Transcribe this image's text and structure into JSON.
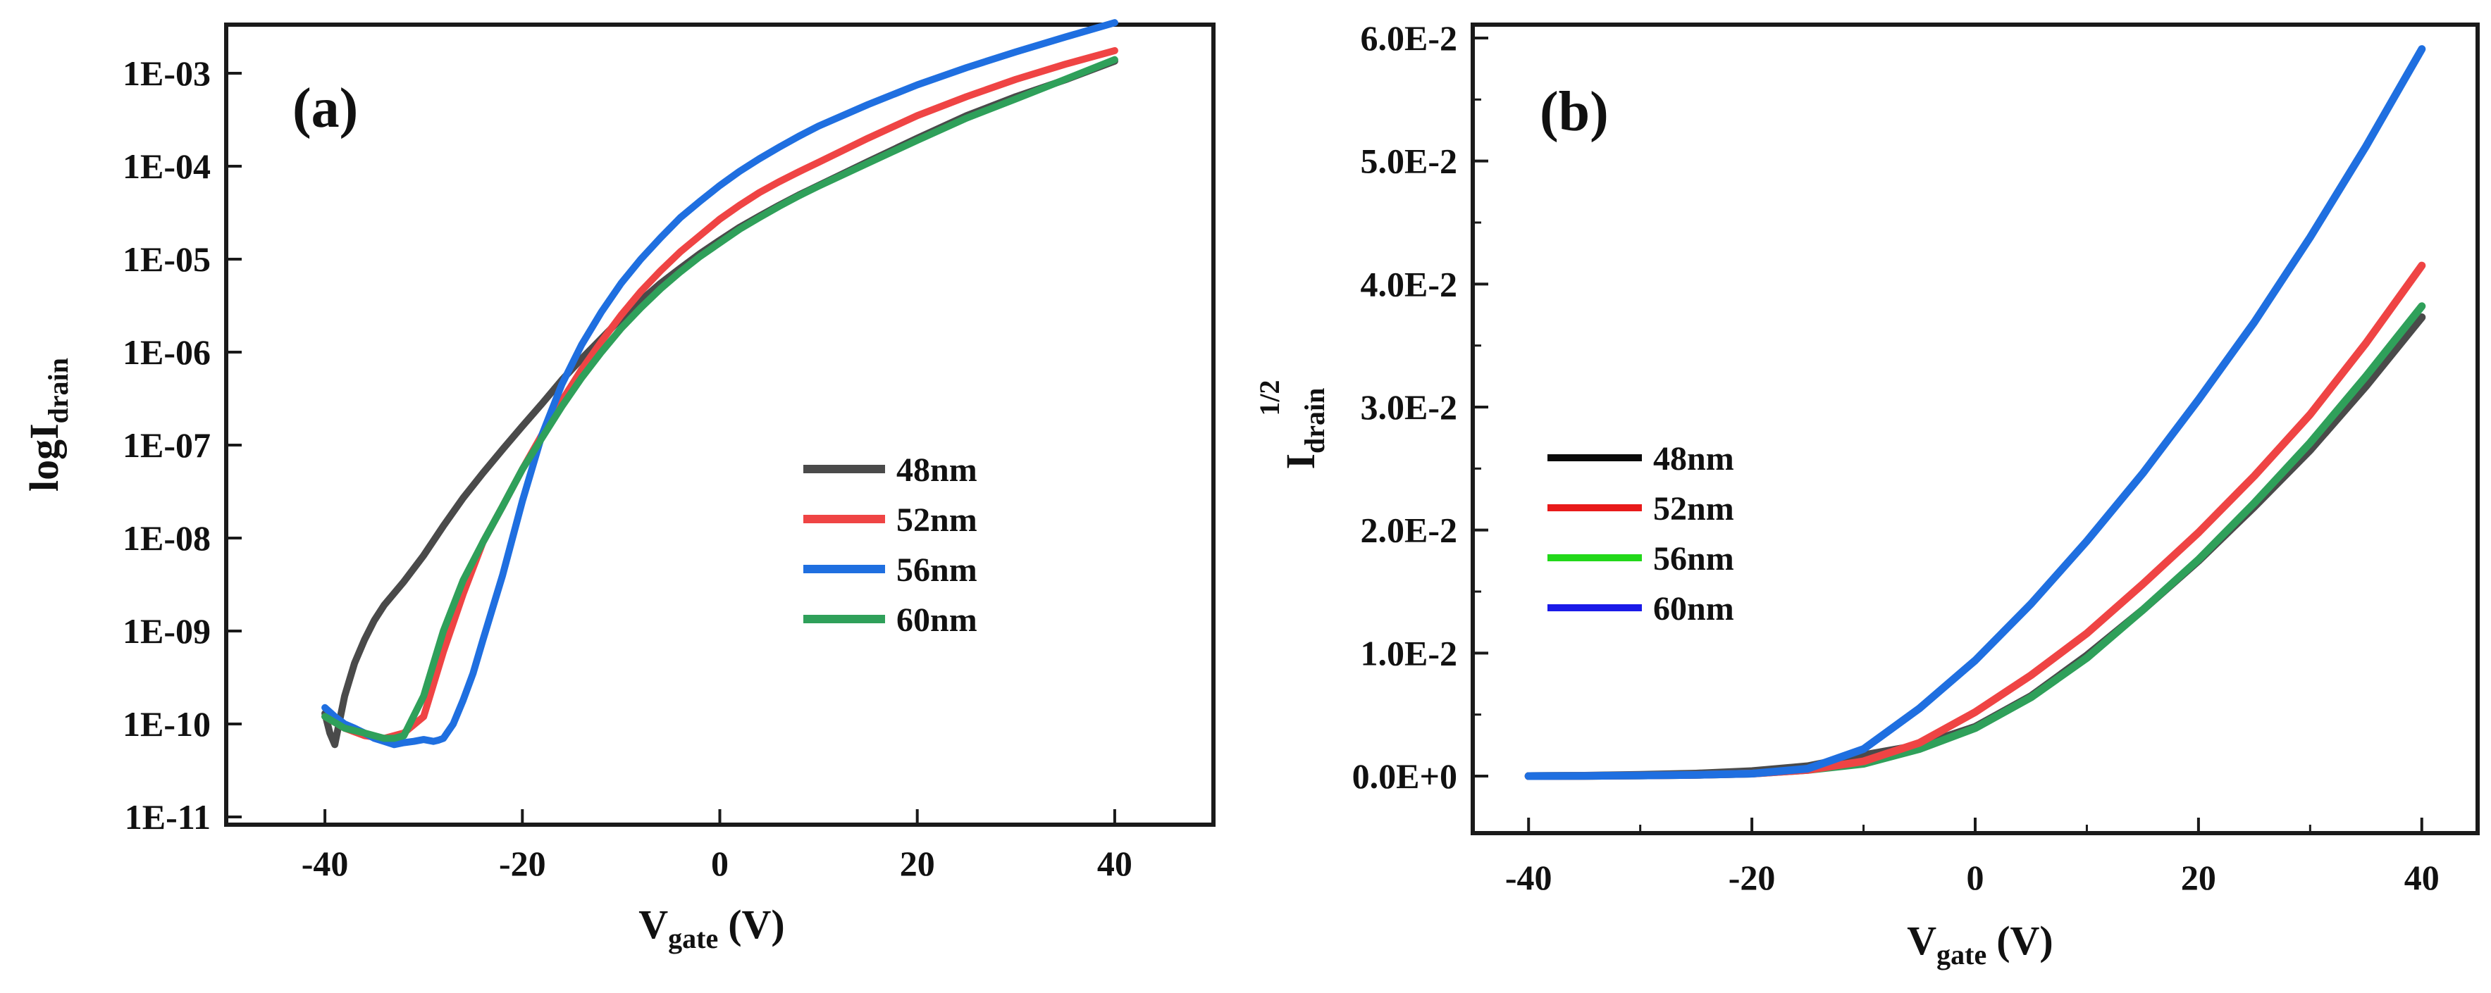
{
  "chart_data": [
    {
      "type": "line",
      "panel_label": "(a)",
      "ylabel": {
        "main": "logI",
        "sub": "drain"
      },
      "xlabel": {
        "main": "V",
        "sub": "gate",
        "unit": "(V)"
      },
      "x_ticks": [
        -40,
        -20,
        0,
        20,
        40
      ],
      "x_tick_labels": [
        "-40",
        "-20",
        "0",
        "20",
        "40"
      ],
      "xlim": [
        -50,
        50
      ],
      "y_scale": "log",
      "ylim": [
        1e-11,
        0.005
      ],
      "y_tick_labels": [
        "1E-11",
        "1E-10",
        "1E-09",
        "1E-08",
        "1E-07",
        "1E-06",
        "1E-05",
        "1E-04",
        "1E-03"
      ],
      "legend_position": "center-right",
      "series": [
        {
          "name": "48nm",
          "color": "#4a4a4a",
          "x": [
            -40,
            -39.5,
            -39,
            -38.5,
            -38,
            -37,
            -36,
            -35,
            -34,
            -32,
            -30,
            -28,
            -26,
            -24,
            -22,
            -20,
            -18,
            -16,
            -14,
            -12,
            -10,
            -8,
            -6,
            -4,
            -2,
            0,
            2,
            4,
            6,
            8,
            10,
            15,
            20,
            25,
            30,
            35,
            40
          ],
          "y": [
            1.3e-10,
            8e-11,
            6e-11,
            1.1e-10,
            2e-10,
            4.5e-10,
            8e-10,
            1.3e-09,
            1.9e-09,
            3.4e-09,
            6.5e-09,
            1.35e-08,
            2.7e-08,
            5e-08,
            9e-08,
            1.6e-07,
            2.8e-07,
            5e-07,
            8.5e-07,
            1.4e-06,
            2.3e-06,
            3.6e-06,
            5.5e-06,
            8e-06,
            1.15e-05,
            1.6e-05,
            2.2e-05,
            2.9e-05,
            3.8e-05,
            4.9e-05,
            6.2e-05,
            0.000112,
            0.0002,
            0.00035,
            0.00056,
            0.00085,
            0.00135
          ]
        },
        {
          "name": "52nm",
          "color": "#ef4444",
          "x": [
            -40,
            -38,
            -36,
            -34,
            -32,
            -30,
            -28,
            -26,
            -24,
            -22,
            -20,
            -18,
            -16,
            -14,
            -12,
            -10,
            -8,
            -6,
            -4,
            -2,
            0,
            2,
            4,
            6,
            8,
            10,
            15,
            20,
            25,
            30,
            35,
            40
          ],
          "y": [
            1.2e-10,
            9e-11,
            7.5e-11,
            7e-11,
            8e-11,
            1.2e-10,
            6e-10,
            2.5e-09,
            9e-09,
            2.2e-08,
            5.5e-08,
            1.3e-07,
            3e-07,
            6.5e-07,
            1.3e-06,
            2.5e-06,
            4.5e-06,
            7.5e-06,
            1.2e-05,
            1.8e-05,
            2.7e-05,
            3.8e-05,
            5.2e-05,
            6.8e-05,
            8.7e-05,
            0.00011,
            0.0002,
            0.00035,
            0.00056,
            0.00086,
            0.00125,
            0.00175
          ]
        },
        {
          "name": "56nm",
          "color": "#1f6fe0",
          "x": [
            -40,
            -39,
            -38,
            -37,
            -36,
            -35,
            -34,
            -33,
            -32,
            -31,
            -30,
            -29,
            -28.5,
            -28,
            -27,
            -26,
            -25,
            -24,
            -22,
            -20,
            -18,
            -16,
            -14,
            -12,
            -10,
            -8,
            -6,
            -4,
            -2,
            0,
            2,
            4,
            6,
            8,
            10,
            15,
            20,
            25,
            30,
            35,
            40
          ],
          "y": [
            1.5e-10,
            1.2e-10,
            1e-10,
            9e-11,
            8e-11,
            7e-11,
            6.5e-11,
            6e-11,
            6.3e-11,
            6.5e-11,
            6.8e-11,
            6.5e-11,
            6.7e-11,
            7e-11,
            1e-10,
            1.8e-10,
            3.5e-10,
            8e-10,
            4e-09,
            2.5e-08,
            1.3e-07,
            4.5e-07,
            1.2e-06,
            2.7e-06,
            5.5e-06,
            1e-05,
            1.7e-05,
            2.8e-05,
            4.2e-05,
            6.2e-05,
            8.8e-05,
            0.00012,
            0.00016,
            0.00021,
            0.00027,
            0.00046,
            0.00075,
            0.00115,
            0.0017,
            0.00245,
            0.0035
          ]
        },
        {
          "name": "60nm",
          "color": "#2fa05a",
          "x": [
            -40,
            -38,
            -36,
            -34,
            -33,
            -32,
            -30,
            -28,
            -26,
            -24,
            -22,
            -20,
            -18,
            -16,
            -14,
            -12,
            -10,
            -8,
            -6,
            -4,
            -2,
            0,
            2,
            4,
            6,
            8,
            10,
            15,
            20,
            25,
            30,
            35,
            40
          ],
          "y": [
            1.2e-10,
            9e-11,
            8e-11,
            7e-11,
            7e-11,
            7.5e-11,
            2e-10,
            1e-09,
            3.5e-09,
            9e-09,
            2.2e-08,
            5.5e-08,
            1.2e-07,
            2.6e-07,
            5.3e-07,
            1e-06,
            1.8e-06,
            3e-06,
            4.8e-06,
            7.3e-06,
            1.07e-05,
            1.5e-05,
            2.1e-05,
            2.8e-05,
            3.7e-05,
            4.8e-05,
            6.1e-05,
            0.000108,
            0.00019,
            0.00033,
            0.00053,
            0.00086,
            0.0014
          ]
        }
      ]
    },
    {
      "type": "line",
      "panel_label": "(b)",
      "ylabel": {
        "main": "I",
        "sub": "drain",
        "sup": "1/2"
      },
      "xlabel": {
        "main": "V",
        "sub": "gate",
        "unit": "(V)"
      },
      "x_ticks": [
        -40,
        -20,
        0,
        20,
        40
      ],
      "x_tick_labels": [
        "-40",
        "-20",
        "0",
        "20",
        "40"
      ],
      "xlim": [
        -45,
        45
      ],
      "y_ticks": [
        0,
        0.01,
        0.02,
        0.03,
        0.04,
        0.05,
        0.06
      ],
      "y_tick_labels": [
        "0.0E+0",
        "1.0E-2",
        "2.0E-2",
        "3.0E-2",
        "4.0E-2",
        "5.0E-2",
        "6.0E-2"
      ],
      "ylim": [
        -0.0045,
        0.06
      ],
      "legend_position": "center-left",
      "series": [
        {
          "name": "48nm",
          "color": "#0a0a0a",
          "x": [
            -40,
            -35,
            -30,
            -25,
            -20,
            -15,
            -10,
            -5,
            0,
            5,
            10,
            15,
            20,
            25,
            30,
            35,
            40
          ],
          "y": [
            0,
            3e-05,
            0.0001,
            0.0002,
            0.0004,
            0.0008,
            0.0017,
            0.0025,
            0.004,
            0.0065,
            0.0098,
            0.0135,
            0.0175,
            0.0219,
            0.0265,
            0.0317,
            0.0373
          ]
        },
        {
          "name": "52nm",
          "color": "#e81a1a",
          "x": [
            -40,
            -35,
            -30,
            -25,
            -20,
            -15,
            -10,
            -5,
            0,
            5,
            10,
            15,
            20,
            25,
            30,
            35,
            40
          ],
          "y": [
            0,
            2e-05,
            5e-05,
            0.0001,
            0.0002,
            0.0005,
            0.0012,
            0.0027,
            0.0052,
            0.0082,
            0.0116,
            0.0156,
            0.0198,
            0.0244,
            0.0294,
            0.0352,
            0.0415
          ]
        },
        {
          "name": "56nm",
          "color": "#22d81a",
          "x": [
            -40,
            -35,
            -30,
            -25,
            -20,
            -15,
            -10,
            -5,
            0,
            5,
            10,
            15,
            20,
            25,
            30,
            35,
            40
          ],
          "y": [
            0,
            2e-05,
            5e-05,
            0.0001,
            0.0002,
            0.0005,
            0.001,
            0.0022,
            0.0039,
            0.0064,
            0.0096,
            0.0135,
            0.0176,
            0.0222,
            0.0271,
            0.0325,
            0.0382
          ]
        },
        {
          "name": "60nm",
          "color": "#1a1ae8",
          "x": [
            -40,
            -35,
            -30,
            -25,
            -20,
            -15,
            -10,
            -5,
            0,
            5,
            10,
            15,
            20,
            25,
            30,
            35,
            40
          ],
          "y": [
            0,
            2e-05,
            5e-05,
            0.0001,
            0.0002,
            0.0006,
            0.0022,
            0.0055,
            0.0094,
            0.014,
            0.0191,
            0.0246,
            0.0306,
            0.0369,
            0.0438,
            0.0512,
            0.0591
          ]
        }
      ],
      "rendered_series": [
        {
          "name": "48nm",
          "color": "#4a4a4a",
          "from": "48nm"
        },
        {
          "name": "56nm",
          "color": "#2fa05a",
          "from": "56nm"
        },
        {
          "name": "52nm",
          "color": "#ef4444",
          "from": "52nm"
        },
        {
          "name": "60nm",
          "color": "#1f6fe0",
          "from": "60nm"
        }
      ]
    }
  ]
}
